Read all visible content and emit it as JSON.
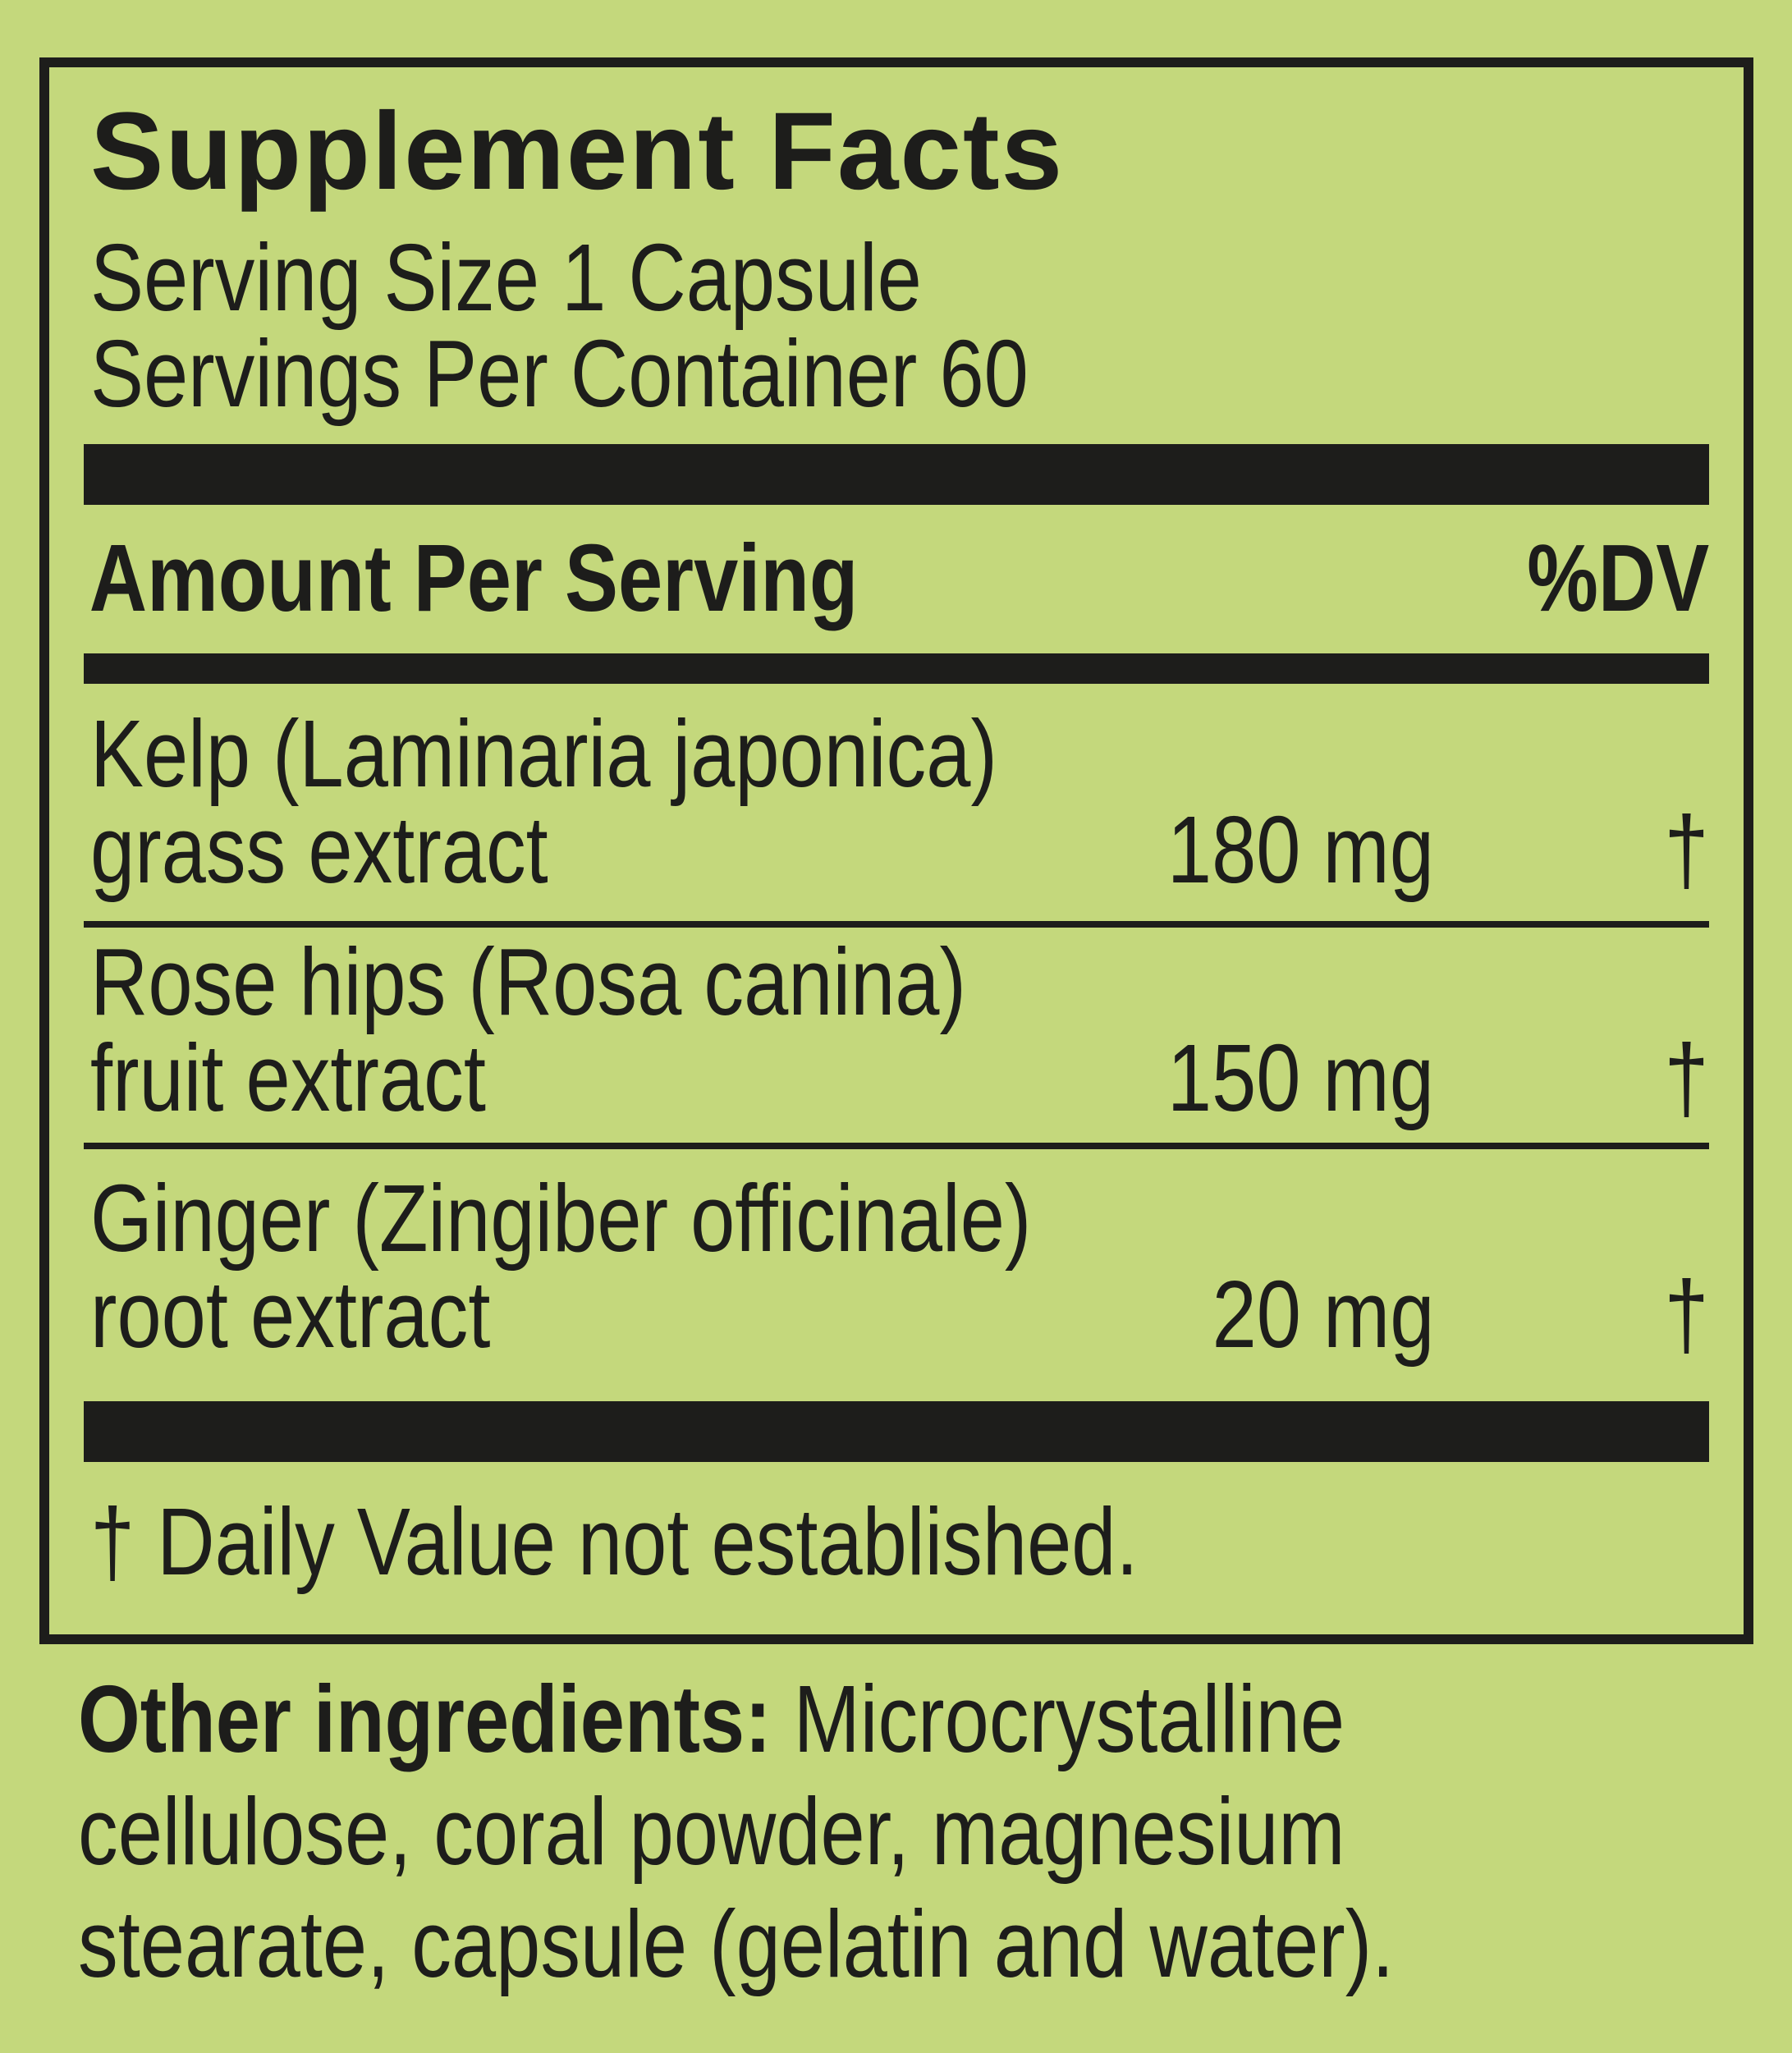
{
  "colors": {
    "background": "#c4d87c",
    "ink": "#1d1d1b"
  },
  "panel": {
    "title": "Supplement Facts",
    "serving_size": "Serving Size 1 Capsule",
    "servings_per_container": "Servings Per Container 60",
    "header": {
      "amount_per_serving": "Amount Per Serving",
      "dv": "%DV"
    },
    "rows": [
      {
        "name_line1": "Kelp (Laminaria japonica)",
        "name_line2": "grass extract",
        "amount": "180 mg",
        "dv": "†"
      },
      {
        "name_line1": "Rose hips (Rosa canina)",
        "name_line2": "fruit extract",
        "amount": "150 mg",
        "dv": "†"
      },
      {
        "name_line1": "Ginger (Zingiber officinale)",
        "name_line2": "root extract",
        "amount": "20 mg",
        "dv": "†"
      }
    ],
    "footnote": "† Daily Value not established."
  },
  "other_ingredients": {
    "label": "Other ingredients:",
    "line1_rest": " Microcrystalline",
    "line2": "cellulose, coral powder, magnesium",
    "line3": "stearate, capsule (gelatin and water)."
  }
}
